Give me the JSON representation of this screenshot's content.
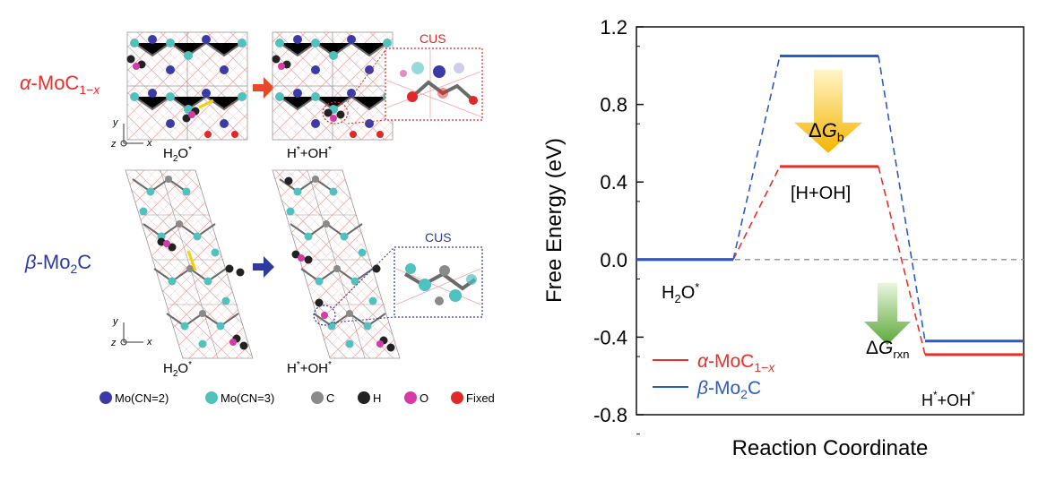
{
  "left_panel": {
    "alpha_label": {
      "greek": "α",
      "text": "-MoC",
      "sub": "1−",
      "sub_it": "x"
    },
    "beta_label": {
      "greek": "β",
      "text": "-Mo",
      "sub": "2",
      "tail": "C"
    },
    "state_initial": {
      "main": "H",
      "sub": "2",
      "rest": "O",
      "sup": "*"
    },
    "state_final": {
      "h": "H",
      "sup1": "*",
      "mid": "+OH",
      "sup2": "*"
    },
    "cus_label_alpha": "CUS",
    "cus_label_beta": "CUS",
    "axis_y": "y",
    "axis_x": "x",
    "axis_z": "z",
    "legend": [
      {
        "label": "Mo(CN=2)",
        "color": "#3a3aa8"
      },
      {
        "label": "Mo(CN=3)",
        "color": "#4fc1bf"
      },
      {
        "label": "C",
        "color": "#8a8a8a"
      },
      {
        "label": "H",
        "color": "#222222"
      },
      {
        "label": "O",
        "color": "#d63aa8"
      },
      {
        "label": "Fixed",
        "color": "#e02828"
      }
    ],
    "colors": {
      "alpha": "#e8302a",
      "beta": "#2b3b9e"
    }
  },
  "chart_data": {
    "type": "line",
    "xlabel": "Reaction Coordinate",
    "ylabel": "Free Energy (eV)",
    "ylim": [
      -0.8,
      1.2
    ],
    "yticks": [
      "1.2",
      "0.8",
      "0.4",
      "0.0",
      "-0.4",
      "-0.8"
    ],
    "ytick_values": [
      1.2,
      0.8,
      0.4,
      0.0,
      -0.4,
      -0.8
    ],
    "levels": [
      {
        "state": "H2O*",
        "alpha": 0.0,
        "beta": 0.0
      },
      {
        "state": "[H+OH]",
        "alpha": 0.48,
        "beta": 1.05
      },
      {
        "state": "H*+OH*",
        "alpha": -0.49,
        "beta": -0.42
      }
    ],
    "series": [
      {
        "name": "α-MoC1−x",
        "color": "#e8302a",
        "values": [
          0.0,
          0.48,
          -0.49
        ]
      },
      {
        "name": "β-Mo2C",
        "color": "#2b5cc0",
        "values": [
          0.0,
          1.05,
          -0.42
        ]
      }
    ],
    "legend": [
      {
        "greek": "α",
        "text": "-MoC",
        "sub": "1−",
        "sub_it": "x",
        "color": "#e8302a"
      },
      {
        "greek": "β",
        "text": "-Mo",
        "sub": "2",
        "tail": "C",
        "color": "#2b5cc0"
      }
    ],
    "annotations": {
      "state1": {
        "main": "H",
        "sub": "2",
        "rest": "O",
        "sup": "*"
      },
      "state2": "[H+OH]",
      "state3": {
        "h": "H",
        "sup1": "*",
        "mid": "+OH",
        "sup2": "*"
      },
      "dGb": {
        "delta": "Δ",
        "g": "G",
        "sub": "b"
      },
      "dGrxn": {
        "delta": "Δ",
        "g": "G",
        "sub": "rxn"
      }
    },
    "zero_line": {
      "value": 0.0,
      "style": "dashed",
      "color": "#9a9a9a"
    }
  }
}
